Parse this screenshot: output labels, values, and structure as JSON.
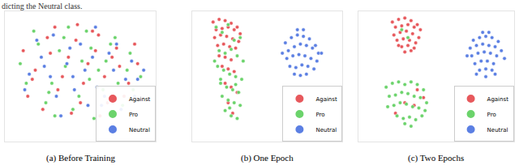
{
  "header_text": "dicting the Neutral class.",
  "chart_data": [
    {
      "type": "scatter",
      "title": "(a) Before Training",
      "xlim": [
        0,
        100
      ],
      "ylim": [
        0,
        100
      ],
      "tick_labels": false,
      "legend": "lower right",
      "marker": "circle",
      "series": [
        {
          "name": "Against",
          "color": "#e5474b",
          "x": [
            12,
            20,
            28,
            35,
            42,
            50,
            58,
            66,
            74,
            82,
            88,
            15,
            25,
            38,
            47,
            55,
            63,
            71,
            79,
            86,
            18,
            30,
            44,
            52,
            60,
            68,
            76,
            33,
            48,
            62
          ],
          "y": [
            70,
            55,
            80,
            40,
            65,
            30,
            85,
            50,
            72,
            45,
            60,
            35,
            25,
            50,
            78,
            60,
            20,
            65,
            35,
            75,
            48,
            68,
            22,
            45,
            70,
            30,
            58,
            88,
            90,
            82
          ]
        },
        {
          "name": "Pro",
          "color": "#5ccf5c",
          "x": [
            10,
            22,
            31,
            40,
            49,
            57,
            65,
            73,
            81,
            90,
            14,
            27,
            36,
            45,
            54,
            62,
            70,
            78,
            85,
            19,
            33,
            42,
            51,
            59,
            67,
            75,
            83,
            39,
            56,
            29
          ],
          "y": [
            60,
            75,
            45,
            58,
            35,
            72,
            40,
            80,
            55,
            50,
            45,
            30,
            70,
            25,
            85,
            55,
            75,
            28,
            40,
            85,
            20,
            88,
            62,
            18,
            62,
            45,
            68,
            80,
            48,
            38
          ]
        },
        {
          "name": "Neutral",
          "color": "#4a72e0",
          "x": [
            16,
            24,
            34,
            43,
            53,
            61,
            69,
            77,
            84,
            92,
            13,
            26,
            37,
            46,
            58,
            64,
            72,
            80,
            88,
            21,
            32,
            41,
            50,
            66,
            74,
            86,
            45,
            55,
            30,
            60
          ],
          "y": [
            52,
            65,
            35,
            72,
            55,
            42,
            68,
            25,
            62,
            55,
            40,
            58,
            20,
            40,
            65,
            28,
            55,
            48,
            48,
            78,
            82,
            60,
            75,
            35,
            75,
            35,
            50,
            28,
            50,
            88
          ]
        }
      ]
    },
    {
      "type": "scatter",
      "title": "(b) One Epoch",
      "xlim": [
        0,
        100
      ],
      "ylim": [
        0,
        100
      ],
      "tick_labels": false,
      "legend": "lower right",
      "marker": "circle",
      "series": [
        {
          "name": "Against",
          "color": "#e5474b",
          "x": [
            14,
            18,
            22,
            26,
            30,
            16,
            20,
            24,
            28,
            32,
            15,
            19,
            23,
            27,
            31,
            17,
            21,
            25,
            29,
            18,
            22,
            26,
            20,
            24,
            28,
            22,
            26,
            30,
            24,
            27
          ],
          "y": [
            92,
            94,
            93,
            91,
            88,
            86,
            87,
            88,
            86,
            83,
            80,
            82,
            81,
            79,
            77,
            74,
            75,
            73,
            72,
            66,
            65,
            63,
            58,
            56,
            54,
            45,
            42,
            38,
            30,
            22
          ]
        },
        {
          "name": "Pro",
          "color": "#5ccf5c",
          "x": [
            16,
            20,
            24,
            28,
            32,
            18,
            22,
            26,
            30,
            34,
            17,
            21,
            25,
            29,
            33,
            19,
            23,
            27,
            31,
            20,
            24,
            28,
            32,
            22,
            26,
            30,
            15,
            19,
            25,
            29
          ],
          "y": [
            88,
            84,
            90,
            78,
            80,
            70,
            68,
            71,
            66,
            62,
            58,
            55,
            52,
            50,
            48,
            45,
            42,
            40,
            38,
            35,
            32,
            30,
            28,
            24,
            20,
            18,
            62,
            48,
            26,
            44
          ]
        },
        {
          "name": "Neutral",
          "color": "#4a72e0",
          "x": [
            62,
            66,
            70,
            74,
            78,
            82,
            64,
            68,
            72,
            76,
            80,
            84,
            63,
            67,
            71,
            75,
            79,
            83,
            65,
            69,
            73,
            77,
            81,
            68,
            72,
            76,
            70,
            74,
            60,
            86
          ],
          "y": [
            76,
            80,
            82,
            81,
            79,
            74,
            70,
            73,
            75,
            74,
            72,
            68,
            64,
            66,
            67,
            66,
            64,
            62,
            58,
            57,
            59,
            58,
            56,
            52,
            51,
            52,
            86,
            86,
            68,
            68
          ]
        }
      ]
    },
    {
      "type": "scatter",
      "title": "(c) Two Epochs",
      "xlim": [
        0,
        100
      ],
      "ylim": [
        0,
        100
      ],
      "tick_labels": false,
      "legend": "lower right",
      "marker": "circle",
      "series": [
        {
          "name": "Against",
          "color": "#e5474b",
          "x": [
            22,
            26,
            30,
            34,
            38,
            24,
            28,
            32,
            36,
            40,
            23,
            27,
            31,
            35,
            39,
            25,
            29,
            33,
            37,
            28,
            32,
            36,
            30,
            34,
            26,
            38,
            30,
            24,
            36,
            42
          ],
          "y": [
            92,
            94,
            95,
            93,
            90,
            88,
            89,
            90,
            88,
            86,
            82,
            84,
            85,
            83,
            80,
            78,
            79,
            78,
            76,
            73,
            74,
            72,
            69,
            70,
            74,
            40,
            30,
            22,
            28,
            34
          ]
        },
        {
          "name": "Pro",
          "color": "#5ccf5c",
          "x": [
            18,
            22,
            26,
            30,
            34,
            38,
            42,
            20,
            24,
            28,
            32,
            36,
            40,
            44,
            19,
            23,
            27,
            31,
            35,
            39,
            43,
            25,
            29,
            33,
            37,
            41,
            30,
            34,
            28,
            32
          ],
          "y": [
            42,
            45,
            46,
            44,
            46,
            44,
            40,
            35,
            36,
            38,
            37,
            35,
            34,
            30,
            27,
            28,
            30,
            29,
            27,
            26,
            24,
            20,
            18,
            19,
            17,
            20,
            14,
            12,
            86,
            80
          ]
        },
        {
          "name": "Neutral",
          "color": "#4a72e0",
          "x": [
            74,
            78,
            82,
            86,
            90,
            72,
            76,
            80,
            84,
            88,
            92,
            73,
            77,
            81,
            85,
            89,
            75,
            79,
            83,
            87,
            78,
            82,
            86,
            80,
            84,
            70,
            94,
            76,
            88,
            82
          ],
          "y": [
            78,
            80,
            81,
            80,
            77,
            72,
            74,
            75,
            74,
            73,
            70,
            66,
            68,
            69,
            68,
            66,
            60,
            62,
            62,
            60,
            55,
            56,
            55,
            84,
            84,
            66,
            64,
            52,
            52,
            50
          ]
        }
      ]
    }
  ]
}
